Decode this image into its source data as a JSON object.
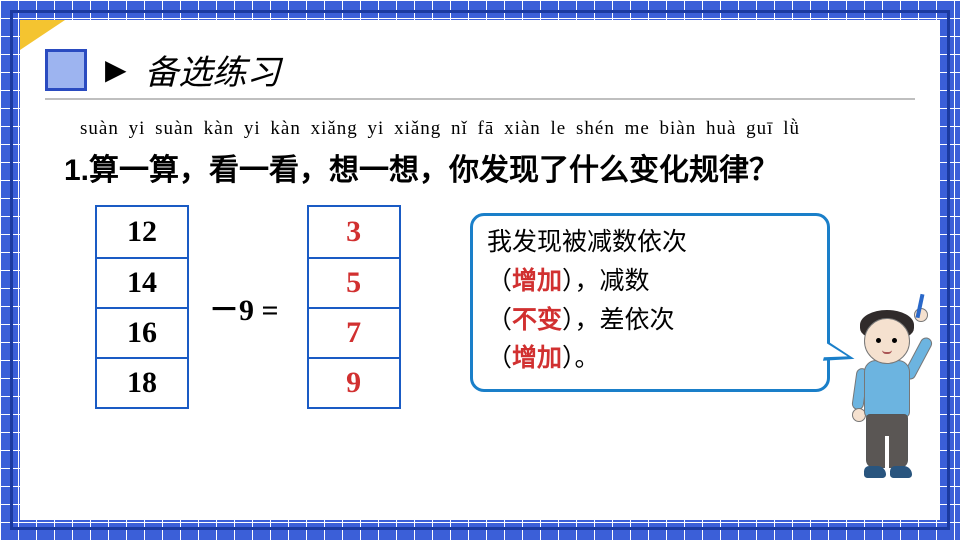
{
  "header": {
    "title": "备选练习"
  },
  "pinyin": "suàn yi suàn   kàn yi kàn   xiǎng yi xiǎng   nǐ fā xiàn le shén me biàn huà guī lǜ",
  "question": "1.算一算，看一看，想一想，你发现了什么变化规律？",
  "math": {
    "minuends": [
      "12",
      "14",
      "16",
      "18"
    ],
    "op": "－9 =",
    "results": [
      "3",
      "5",
      "7",
      "9"
    ]
  },
  "bubble": {
    "line1": "我发现被减数依次",
    "open": "（",
    "close": "），",
    "ans1": "增加",
    "mid1": "减数",
    "ans2": "不变",
    "mid2": "差依次",
    "close2": "）。",
    "ans3": "增加"
  },
  "colors": {
    "answer": "#d13030",
    "border_blue": "#1a5bc4",
    "bubble_border": "#1a7fc9",
    "grid": "#3b5fd8"
  }
}
